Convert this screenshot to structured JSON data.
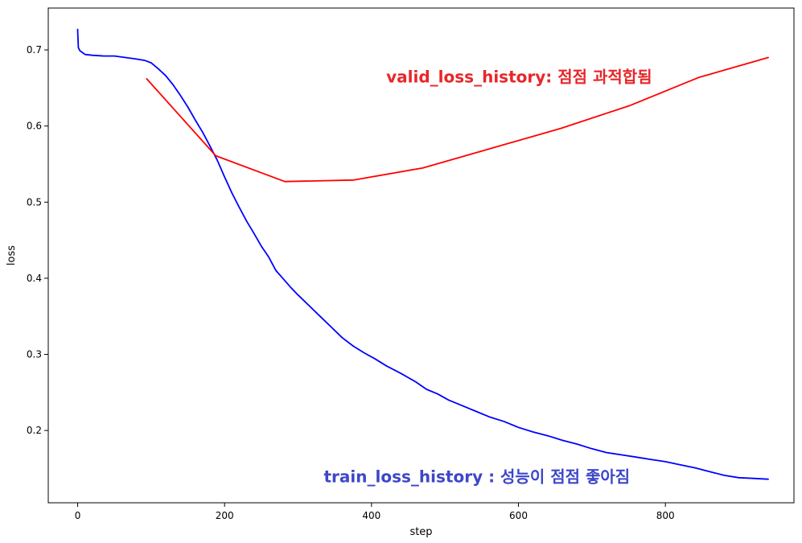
{
  "chart_data": {
    "type": "line",
    "xlabel": "step",
    "ylabel": "loss",
    "xlim": [
      -40,
      975
    ],
    "ylim": [
      0.105,
      0.755
    ],
    "x_ticks": [
      0,
      200,
      400,
      600,
      800
    ],
    "y_ticks": [
      0.2,
      0.3,
      0.4,
      0.5,
      0.6,
      0.7
    ],
    "grid": false,
    "series": [
      {
        "color": "#0000ff",
        "x": [
          0,
          1,
          3,
          10,
          20,
          35,
          50,
          65,
          80,
          92,
          100,
          110,
          120,
          130,
          140,
          150,
          160,
          170,
          180,
          190,
          200,
          210,
          220,
          230,
          240,
          250,
          260,
          270,
          280,
          290,
          300,
          315,
          330,
          345,
          360,
          375,
          390,
          405,
          420,
          440,
          460,
          475,
          490,
          505,
          520,
          540,
          560,
          580,
          600,
          620,
          640,
          660,
          680,
          700,
          720,
          740,
          760,
          780,
          800,
          820,
          840,
          860,
          880,
          900,
          920,
          940
        ],
        "values": [
          0.727,
          0.703,
          0.699,
          0.694,
          0.693,
          0.692,
          0.692,
          0.69,
          0.688,
          0.686,
          0.683,
          0.675,
          0.666,
          0.654,
          0.64,
          0.625,
          0.608,
          0.592,
          0.574,
          0.555,
          0.533,
          0.512,
          0.493,
          0.475,
          0.459,
          0.442,
          0.428,
          0.41,
          0.399,
          0.388,
          0.378,
          0.364,
          0.35,
          0.336,
          0.322,
          0.311,
          0.302,
          0.294,
          0.285,
          0.275,
          0.264,
          0.254,
          0.248,
          0.24,
          0.234,
          0.226,
          0.218,
          0.212,
          0.204,
          0.198,
          0.193,
          0.187,
          0.182,
          0.176,
          0.171,
          0.168,
          0.165,
          0.162,
          0.159,
          0.155,
          0.151,
          0.146,
          0.141,
          0.138,
          0.137,
          0.136
        ]
      },
      {
        "color": "#ff0000",
        "x": [
          94,
          188,
          282,
          376,
          470,
          564,
          658,
          752,
          846,
          940
        ],
        "values": [
          0.662,
          0.561,
          0.527,
          0.529,
          0.545,
          0.571,
          0.597,
          0.627,
          0.664,
          0.69
        ]
      }
    ],
    "annotations": [
      {
        "text": "valid_loss_history: 점점 과적합됨",
        "x": 420,
        "y": 0.657,
        "color": "#e8262a"
      },
      {
        "text": "train_loss_history : 성능이 점점 좋아짐",
        "x": 335,
        "y": 0.132,
        "color": "#3d47c9"
      }
    ]
  }
}
